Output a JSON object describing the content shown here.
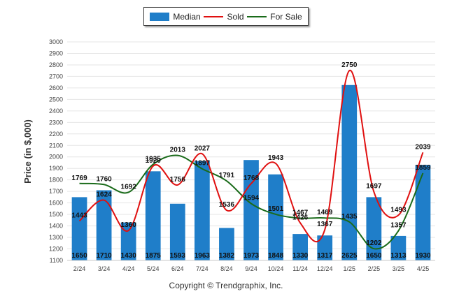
{
  "legend": {
    "items": [
      {
        "label": "Median",
        "color": "#1f7ec9",
        "kind": "bar"
      },
      {
        "label": "Sold",
        "color": "#e01010",
        "kind": "line"
      },
      {
        "label": "For Sale",
        "color": "#1a6b1a",
        "kind": "line"
      }
    ]
  },
  "copyright": "Copyright © Trendgraphix, Inc.",
  "chart_data": {
    "type": "bar",
    "categories": [
      "2/24",
      "3/24",
      "4/24",
      "5/24",
      "6/24",
      "7/24",
      "8/24",
      "9/24",
      "10/24",
      "11/24",
      "12/24",
      "1/25",
      "2/25",
      "3/25",
      "4/25"
    ],
    "ylabel": "Price (in $,000)",
    "ylim": [
      1100,
      3000
    ],
    "yticks": [
      1100,
      1200,
      1300,
      1400,
      1500,
      1600,
      1700,
      1800,
      1900,
      2000,
      2100,
      2200,
      2300,
      2400,
      2500,
      2600,
      2700,
      2800,
      2900,
      3000
    ],
    "grid": true,
    "legend_position": "top-center",
    "series": [
      {
        "name": "Median",
        "type": "bar",
        "color": "#1f7ec9",
        "values": [
          1650,
          1710,
          1430,
          1875,
          1593,
          1963,
          1382,
          1973,
          1848,
          1330,
          1317,
          2625,
          1650,
          1313,
          1930
        ]
      },
      {
        "name": "Sold",
        "type": "line",
        "color": "#e01010",
        "values": [
          1443,
          1624,
          1360,
          1920,
          1756,
          2027,
          1536,
          1768,
          1943,
          1426,
          1367,
          2750,
          1697,
          1493,
          2039
        ]
      },
      {
        "name": "For Sale",
        "type": "line",
        "color": "#1a6b1a",
        "values": [
          1769,
          1760,
          1692,
          1935,
          2013,
          1897,
          1791,
          1594,
          1501,
          1467,
          1469,
          1435,
          1202,
          1357,
          1859
        ]
      }
    ]
  }
}
